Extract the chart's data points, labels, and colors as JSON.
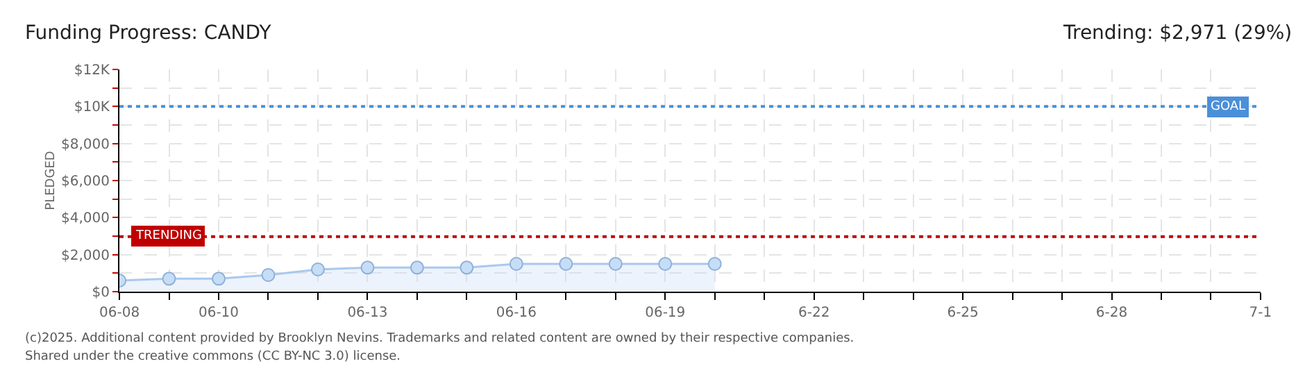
{
  "chart_data": {
    "type": "area",
    "title": "Funding Progress: CANDY",
    "subtitle": "Trending: $2,971 (29%)",
    "ylabel": "PLEDGED",
    "categories": [
      "06-08",
      null,
      "06-10",
      null,
      null,
      "06-13",
      null,
      null,
      "06-16",
      null,
      null,
      "06-19",
      null,
      null,
      "6-22",
      null,
      null,
      "6-25",
      null,
      null,
      "6-28",
      null,
      null,
      "7-1"
    ],
    "series": [
      {
        "color": "#a9c8ee",
        "values": [
          600,
          700,
          700,
          900,
          1200,
          1300,
          1300,
          1300,
          1500,
          1500,
          1500,
          1500,
          1500,
          null,
          null,
          null,
          null,
          null,
          null,
          null,
          null,
          null,
          null,
          null
        ]
      }
    ],
    "ylim": [
      0,
      12000
    ],
    "yticks": [
      {
        "value": 0,
        "label": "$0"
      },
      {
        "value": 1000,
        "label": null
      },
      {
        "value": 2000,
        "label": "$2,000"
      },
      {
        "value": 3000,
        "label": null
      },
      {
        "value": 4000,
        "label": "$4,000"
      },
      {
        "value": 5000,
        "label": null
      },
      {
        "value": 6000,
        "label": "$6,000"
      },
      {
        "value": 7000,
        "label": null
      },
      {
        "value": 8000,
        "label": "$8,000"
      },
      {
        "value": 9000,
        "label": null
      },
      {
        "value": 10000,
        "label": "$10K"
      },
      {
        "value": 11000,
        "label": null
      },
      {
        "value": 12000,
        "label": "$12K"
      }
    ],
    "grid": true,
    "marker": "circle",
    "ref_lines": [
      {
        "axis": "y",
        "value": 10000,
        "label": "GOAL",
        "color": "#4a90d9",
        "line_style": "dotted"
      },
      {
        "axis": "y",
        "value": 2971,
        "label": "TRENDING",
        "color": "#c00000",
        "line_style": "dotted"
      }
    ],
    "annotations": [
      "(c)2025. Additional content provided by Brooklyn Nevins. Trademarks and related content are owned by their respective companies.",
      "Shared under the creative commons (CC BY-NC 3.0) license."
    ]
  }
}
